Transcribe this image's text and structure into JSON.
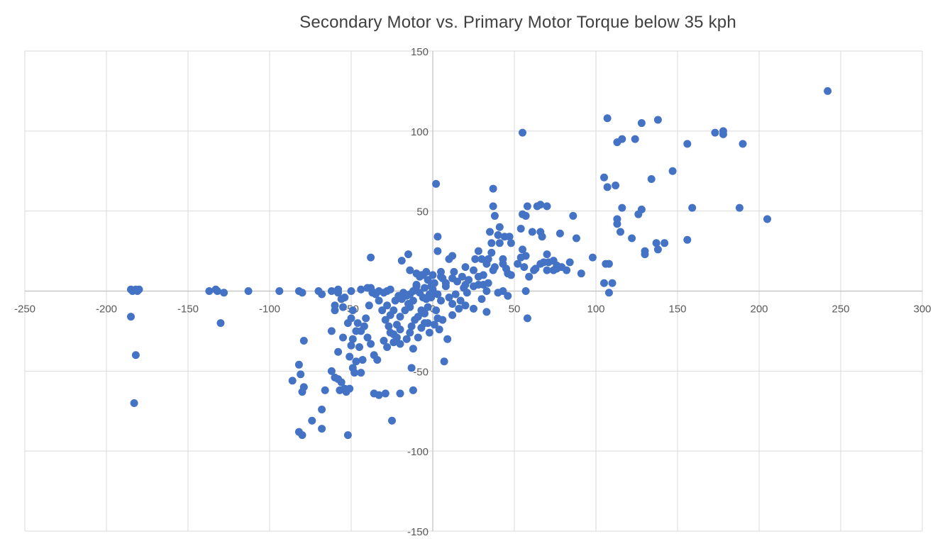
{
  "chart_data": {
    "type": "scatter",
    "title": "Secondary Motor vs. Primary Motor Torque below 35 kph",
    "xlabel": "",
    "ylabel": "",
    "xlim": [
      -250,
      300
    ],
    "ylim": [
      -150,
      150
    ],
    "x_ticks": [
      "-250",
      "-200",
      "-150",
      "-100",
      "-50",
      "0",
      "50",
      "100",
      "150",
      "200",
      "250",
      "300"
    ],
    "y_ticks": [
      "150",
      "100",
      "50",
      "-50",
      "-100",
      "-150"
    ],
    "grid": true,
    "legend": "none",
    "marker_color": "#4472c4",
    "gridline_color": "#d9d9d9",
    "series": [
      {
        "points": [
          [
            242,
            125
          ],
          [
            107,
            108
          ],
          [
            128,
            105
          ],
          [
            138,
            107
          ],
          [
            113,
            93
          ],
          [
            116,
            95
          ],
          [
            124,
            95
          ],
          [
            173,
            99
          ],
          [
            178,
            100
          ],
          [
            178,
            98
          ],
          [
            156,
            92
          ],
          [
            190,
            92
          ],
          [
            55,
            99
          ],
          [
            147,
            75
          ],
          [
            105,
            71
          ],
          [
            134,
            70
          ],
          [
            107,
            65
          ],
          [
            112,
            66
          ],
          [
            2,
            67
          ],
          [
            37,
            64
          ],
          [
            159,
            52
          ],
          [
            188,
            52
          ],
          [
            205,
            45
          ],
          [
            128,
            51
          ],
          [
            126,
            48
          ],
          [
            116,
            52
          ],
          [
            113,
            45
          ],
          [
            113,
            42
          ],
          [
            115,
            37
          ],
          [
            122,
            33
          ],
          [
            137,
            30
          ],
          [
            142,
            30
          ],
          [
            138,
            26
          ],
          [
            130,
            25
          ],
          [
            130,
            23
          ],
          [
            156,
            32
          ],
          [
            108,
            17
          ],
          [
            105,
            5
          ],
          [
            110,
            5
          ],
          [
            108,
            -1
          ],
          [
            106,
            17
          ],
          [
            98,
            21
          ],
          [
            91,
            11
          ],
          [
            37,
            53
          ],
          [
            55,
            48
          ],
          [
            57,
            47
          ],
          [
            58,
            53
          ],
          [
            64,
            53
          ],
          [
            66,
            54
          ],
          [
            70,
            53
          ],
          [
            86,
            47
          ],
          [
            38,
            47
          ],
          [
            41,
            40
          ],
          [
            54,
            39
          ],
          [
            66,
            37
          ],
          [
            61,
            37
          ],
          [
            67,
            34
          ],
          [
            88,
            33
          ],
          [
            78,
            36
          ],
          [
            35,
            37
          ],
          [
            40,
            35
          ],
          [
            44,
            34
          ],
          [
            41,
            30
          ],
          [
            47,
            34
          ],
          [
            48,
            30
          ],
          [
            36,
            30
          ],
          [
            36,
            24
          ],
          [
            55,
            26
          ],
          [
            54,
            21
          ],
          [
            57,
            22
          ],
          [
            70,
            23
          ],
          [
            71,
            18
          ],
          [
            74,
            19
          ],
          [
            76,
            14
          ],
          [
            82,
            13
          ],
          [
            84,
            18
          ],
          [
            13,
            12
          ],
          [
            20,
            15
          ],
          [
            25,
            13
          ],
          [
            28,
            9
          ],
          [
            31,
            10
          ],
          [
            34,
            5
          ],
          [
            37,
            13
          ],
          [
            34,
            20
          ],
          [
            30,
            20
          ],
          [
            26,
            20
          ],
          [
            28,
            25
          ],
          [
            33,
            17
          ],
          [
            38,
            15
          ],
          [
            43,
            20
          ],
          [
            43,
            17
          ],
          [
            45,
            14
          ],
          [
            48,
            10
          ],
          [
            46,
            11
          ],
          [
            52,
            17
          ],
          [
            56,
            15
          ],
          [
            59,
            9
          ],
          [
            63,
            14
          ],
          [
            62,
            13
          ],
          [
            66,
            17
          ],
          [
            68,
            18
          ],
          [
            70,
            13
          ],
          [
            74,
            13
          ],
          [
            76,
            16
          ],
          [
            79,
            15
          ],
          [
            3,
            34
          ],
          [
            10,
            20
          ],
          [
            12,
            22
          ],
          [
            5,
            9
          ],
          [
            8,
            5
          ],
          [
            12,
            8
          ],
          [
            15,
            6
          ],
          [
            18,
            9
          ],
          [
            20,
            4
          ],
          [
            22,
            7
          ],
          [
            25,
            3
          ],
          [
            28,
            4
          ],
          [
            31,
            4
          ],
          [
            33,
            0
          ],
          [
            19,
            2
          ],
          [
            14,
            -2
          ],
          [
            17,
            -6
          ],
          [
            21,
            -1
          ],
          [
            16,
            -11
          ],
          [
            12,
            -8
          ],
          [
            10,
            -4
          ],
          [
            12,
            -15
          ],
          [
            20,
            -9
          ],
          [
            25,
            -11
          ],
          [
            30,
            -5
          ],
          [
            33,
            -13
          ],
          [
            40,
            -1
          ],
          [
            43,
            0
          ],
          [
            46,
            -3
          ],
          [
            57,
            0
          ],
          [
            58,
            -17
          ],
          [
            0,
            10
          ],
          [
            1,
            5
          ],
          [
            0,
            0
          ],
          [
            -1,
            3
          ],
          [
            -2,
            -2
          ],
          [
            -3,
            7
          ],
          [
            -5,
            2
          ],
          [
            -4,
            -5
          ],
          [
            -6,
            -4
          ],
          [
            -8,
            -1
          ],
          [
            -10,
            3
          ],
          [
            -12,
            -6
          ],
          [
            -14,
            -10
          ],
          [
            -7,
            -12
          ],
          [
            -9,
            -16
          ],
          [
            -11,
            -18
          ],
          [
            -13,
            -22
          ],
          [
            -15,
            -8
          ],
          [
            -17,
            -12
          ],
          [
            -19,
            -5
          ],
          [
            -20,
            -16
          ],
          [
            -3,
            -20
          ],
          [
            -5,
            -14
          ],
          [
            -2,
            -26
          ],
          [
            1,
            -21
          ],
          [
            3,
            -17
          ],
          [
            5,
            -6
          ],
          [
            3,
            -2
          ],
          [
            6,
            8
          ],
          [
            5,
            12
          ],
          [
            3,
            25
          ],
          [
            8,
            3
          ],
          [
            -4,
            12
          ],
          [
            -6,
            10
          ],
          [
            -8,
            9
          ],
          [
            -10,
            4
          ],
          [
            -12,
            0
          ],
          [
            -14,
            -2
          ],
          [
            -16,
            -3
          ],
          [
            -18,
            -1
          ],
          [
            -21,
            -3
          ],
          [
            -23,
            -6
          ],
          [
            -24,
            -12
          ],
          [
            -26,
            -15
          ],
          [
            -28,
            -9
          ],
          [
            -22,
            -21
          ],
          [
            -20,
            -24
          ],
          [
            -24,
            -27
          ],
          [
            -27,
            -22
          ],
          [
            -29,
            -18
          ],
          [
            -31,
            -12
          ],
          [
            -33,
            -6
          ],
          [
            -35,
            -2
          ],
          [
            -37,
            -1
          ],
          [
            -38,
            2
          ],
          [
            -39,
            -9
          ],
          [
            -41,
            -17
          ],
          [
            -42,
            -22
          ],
          [
            -44,
            -25
          ],
          [
            -40,
            -29
          ],
          [
            -38,
            -33
          ],
          [
            -36,
            -40
          ],
          [
            -34,
            -43
          ],
          [
            -30,
            -31
          ],
          [
            -28,
            -35
          ],
          [
            -26,
            -26
          ],
          [
            -24,
            -32
          ],
          [
            -22,
            -29
          ],
          [
            -20,
            -33
          ],
          [
            -16,
            -30
          ],
          [
            -14,
            -26
          ],
          [
            -12,
            -36
          ],
          [
            -9,
            -29
          ],
          [
            -7,
            -23
          ],
          [
            -5,
            -20
          ],
          [
            -3,
            -10
          ],
          [
            -1,
            -4
          ],
          [
            2,
            -12
          ],
          [
            4,
            -24
          ],
          [
            6,
            -18
          ],
          [
            9,
            -30
          ],
          [
            7,
            -44
          ],
          [
            -38,
            21
          ],
          [
            -19,
            19
          ],
          [
            -15,
            23
          ],
          [
            -14,
            13
          ],
          [
            -10,
            11
          ],
          [
            -7,
            10
          ],
          [
            0,
            1
          ],
          [
            -46,
            -20
          ],
          [
            -47,
            -25
          ],
          [
            -49,
            -30
          ],
          [
            -50,
            -34
          ],
          [
            -45,
            -35
          ],
          [
            -43,
            -43
          ],
          [
            -47,
            -44
          ],
          [
            -49,
            -48
          ],
          [
            -51,
            -41
          ],
          [
            -44,
            -51
          ],
          [
            -48,
            -51
          ],
          [
            -51,
            -61
          ],
          [
            -53,
            -63
          ],
          [
            -54,
            -61
          ],
          [
            -56,
            -57
          ],
          [
            -57,
            -62
          ],
          [
            -58,
            -55
          ],
          [
            -60,
            -54
          ],
          [
            -62,
            -50
          ],
          [
            -58,
            -38
          ],
          [
            -55,
            -29
          ],
          [
            -52,
            -20
          ],
          [
            -50,
            -17
          ],
          [
            -49,
            -12
          ],
          [
            -55,
            -10
          ],
          [
            -60,
            -12
          ],
          [
            -62,
            -25
          ],
          [
            -60,
            -9
          ],
          [
            -56,
            -5
          ],
          [
            -54,
            -4
          ],
          [
            -58,
            -1
          ],
          [
            -36,
            -64
          ],
          [
            -33,
            -65
          ],
          [
            -29,
            -64
          ],
          [
            -25,
            -81
          ],
          [
            -20,
            -64
          ],
          [
            -13,
            -48
          ],
          [
            -12,
            -62
          ],
          [
            -52,
            -90
          ],
          [
            -68,
            -74
          ],
          [
            -68,
            -86
          ],
          [
            -66,
            -62
          ],
          [
            -74,
            -81
          ],
          [
            -79,
            -60
          ],
          [
            -80,
            -63
          ],
          [
            -81,
            -52
          ],
          [
            -82,
            -46
          ],
          [
            -82,
            -88
          ],
          [
            -80,
            -90
          ],
          [
            -79,
            -31
          ],
          [
            -86,
            -56
          ],
          [
            -82,
            0
          ],
          [
            -80,
            -1
          ],
          [
            -70,
            0
          ],
          [
            -68,
            -2
          ],
          [
            -62,
            0
          ],
          [
            -58,
            1
          ],
          [
            -50,
            0
          ],
          [
            -44,
            1
          ],
          [
            -40,
            2
          ],
          [
            -36,
            -1
          ],
          [
            -33,
            0
          ],
          [
            -30,
            -1
          ],
          [
            -28,
            0
          ],
          [
            -26,
            1
          ],
          [
            -137,
            0
          ],
          [
            -133,
            1
          ],
          [
            -132,
            0
          ],
          [
            -128,
            -1
          ],
          [
            -130,
            -20
          ],
          [
            -113,
            0
          ],
          [
            -94,
            0
          ],
          [
            -185,
            1
          ],
          [
            -184,
            0
          ],
          [
            -182,
            1
          ],
          [
            -181,
            0
          ],
          [
            -180,
            1
          ],
          [
            -185,
            -16
          ],
          [
            -182,
            -40
          ],
          [
            -183,
            -70
          ]
        ]
      }
    ]
  }
}
